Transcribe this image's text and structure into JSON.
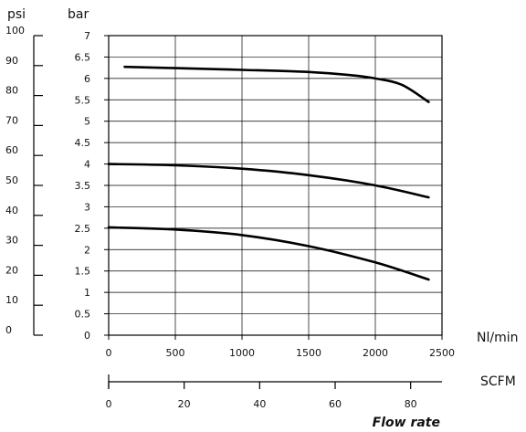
{
  "chart_data": {
    "type": "line",
    "primary_axis": {
      "unit": "bar",
      "range": [
        0,
        7
      ],
      "ticks": [
        "0",
        "0.5",
        "1",
        "1.5",
        "2",
        "2.5",
        "3",
        "3.5",
        "4",
        "4.5",
        "5",
        "5.5",
        "6",
        "6.5",
        "7"
      ]
    },
    "secondary_axis": {
      "unit": "psi",
      "range": [
        0,
        100
      ],
      "ticks": [
        "0",
        "10",
        "20",
        "30",
        "40",
        "50",
        "60",
        "70",
        "80",
        "90",
        "100"
      ]
    },
    "x_axis": {
      "unit": "Nl/min",
      "range": [
        0,
        2500
      ],
      "ticks": [
        "0",
        "500",
        "1000",
        "1500",
        "2000",
        "2500"
      ]
    },
    "x_axis_secondary": {
      "unit": "SCFM",
      "range": [
        0,
        88.3
      ],
      "ticks": [
        "0",
        "20",
        "40",
        "60",
        "80"
      ]
    },
    "xlabel": "Flow rate",
    "grid": true,
    "series": [
      {
        "x": [
          120,
          500,
          1000,
          1500,
          1800,
          2000,
          2200,
          2400
        ],
        "y": [
          6.27,
          6.24,
          6.2,
          6.15,
          6.08,
          6.0,
          5.85,
          5.45
        ]
      },
      {
        "x": [
          0,
          500,
          1000,
          1500,
          2000,
          2400
        ],
        "y": [
          4.0,
          3.97,
          3.89,
          3.74,
          3.5,
          3.22
        ]
      },
      {
        "x": [
          0,
          500,
          1000,
          1500,
          2000,
          2400
        ],
        "y": [
          2.52,
          2.47,
          2.34,
          2.08,
          1.7,
          1.3
        ]
      }
    ]
  }
}
